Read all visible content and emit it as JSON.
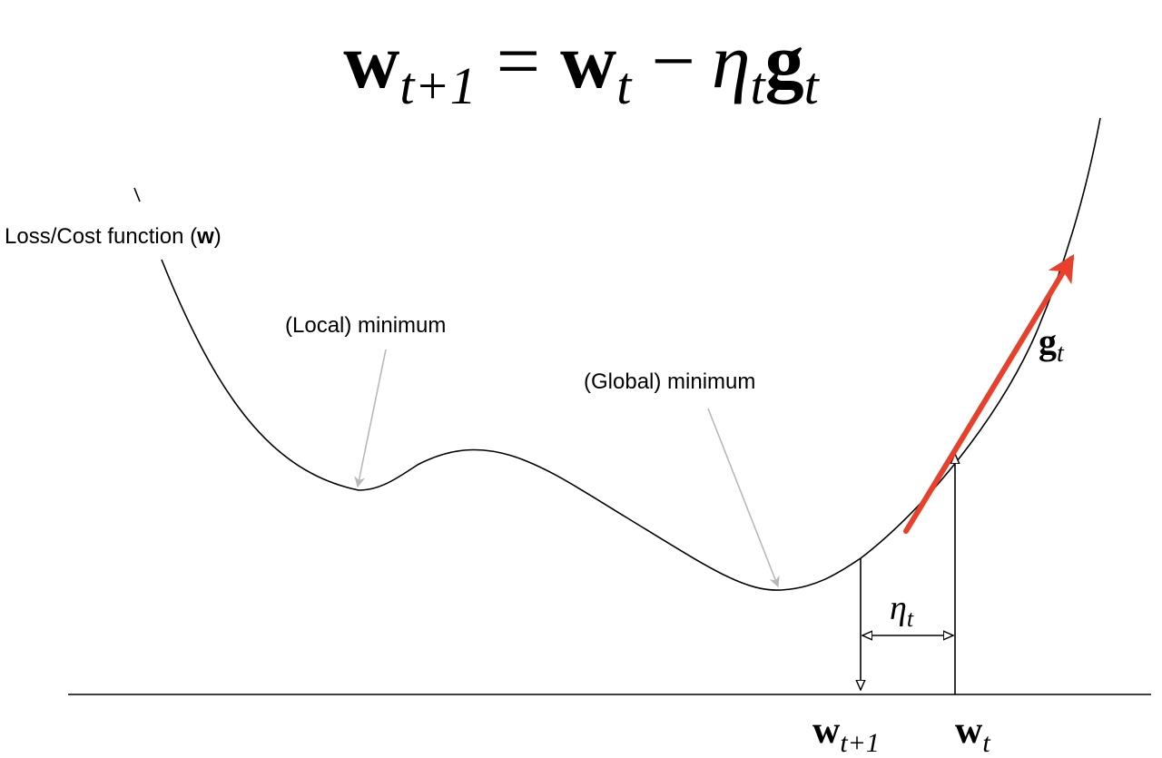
{
  "equation": {
    "w": "w",
    "sub_next": "t+1",
    "equals": "=",
    "sub_t": "t",
    "minus": "−",
    "eta": "η",
    "eta_sub": "t",
    "g": "g",
    "g_sub": "t"
  },
  "labels": {
    "loss_prefix": "Loss/Cost function (",
    "loss_bold": "w",
    "loss_suffix": ")",
    "local_min": "(Local) minimum",
    "global_min": "(Global) minimum",
    "gradient_symbol": "g",
    "gradient_sub": "t",
    "step_symbol": "η",
    "step_sub": "t",
    "w_next": "w",
    "w_next_sub": "t+1",
    "w_curr": "w",
    "w_curr_sub": "t"
  },
  "colors": {
    "curve": "#000000",
    "gradient_arrow": "#e8402a",
    "pointer_arrow": "#b8b8b8"
  }
}
